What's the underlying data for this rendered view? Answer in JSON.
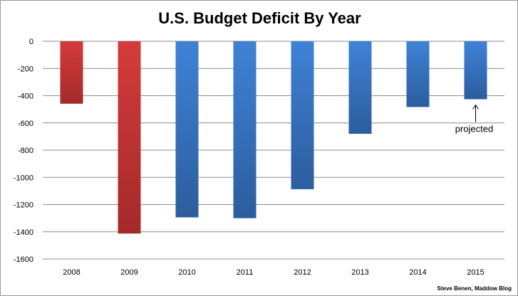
{
  "chart_data": {
    "type": "bar",
    "title": "U.S. Budget Deficit By Year",
    "xlabel": "",
    "ylabel": "",
    "categories": [
      "2008",
      "2009",
      "2010",
      "2011",
      "2012",
      "2013",
      "2014",
      "2015"
    ],
    "values": [
      -459,
      -1413,
      -1294,
      -1300,
      -1087,
      -680,
      -483,
      -426
    ],
    "ylim": [
      -1600,
      0
    ],
    "yticks": [
      0,
      -200,
      -400,
      -600,
      -800,
      -1000,
      -1200,
      -1400,
      -1600
    ],
    "grid": true,
    "colors": {
      "red_top": "#d43b3b",
      "red_bottom": "#a52a2a",
      "blue_top": "#3f82d6",
      "blue_bottom": "#2c5d9e",
      "red_categories": [
        "2008",
        "2009"
      ]
    },
    "annotations": [
      {
        "text": "projected",
        "category": "2015"
      }
    ],
    "credit": "Steve Benen, Maddow Blog"
  }
}
